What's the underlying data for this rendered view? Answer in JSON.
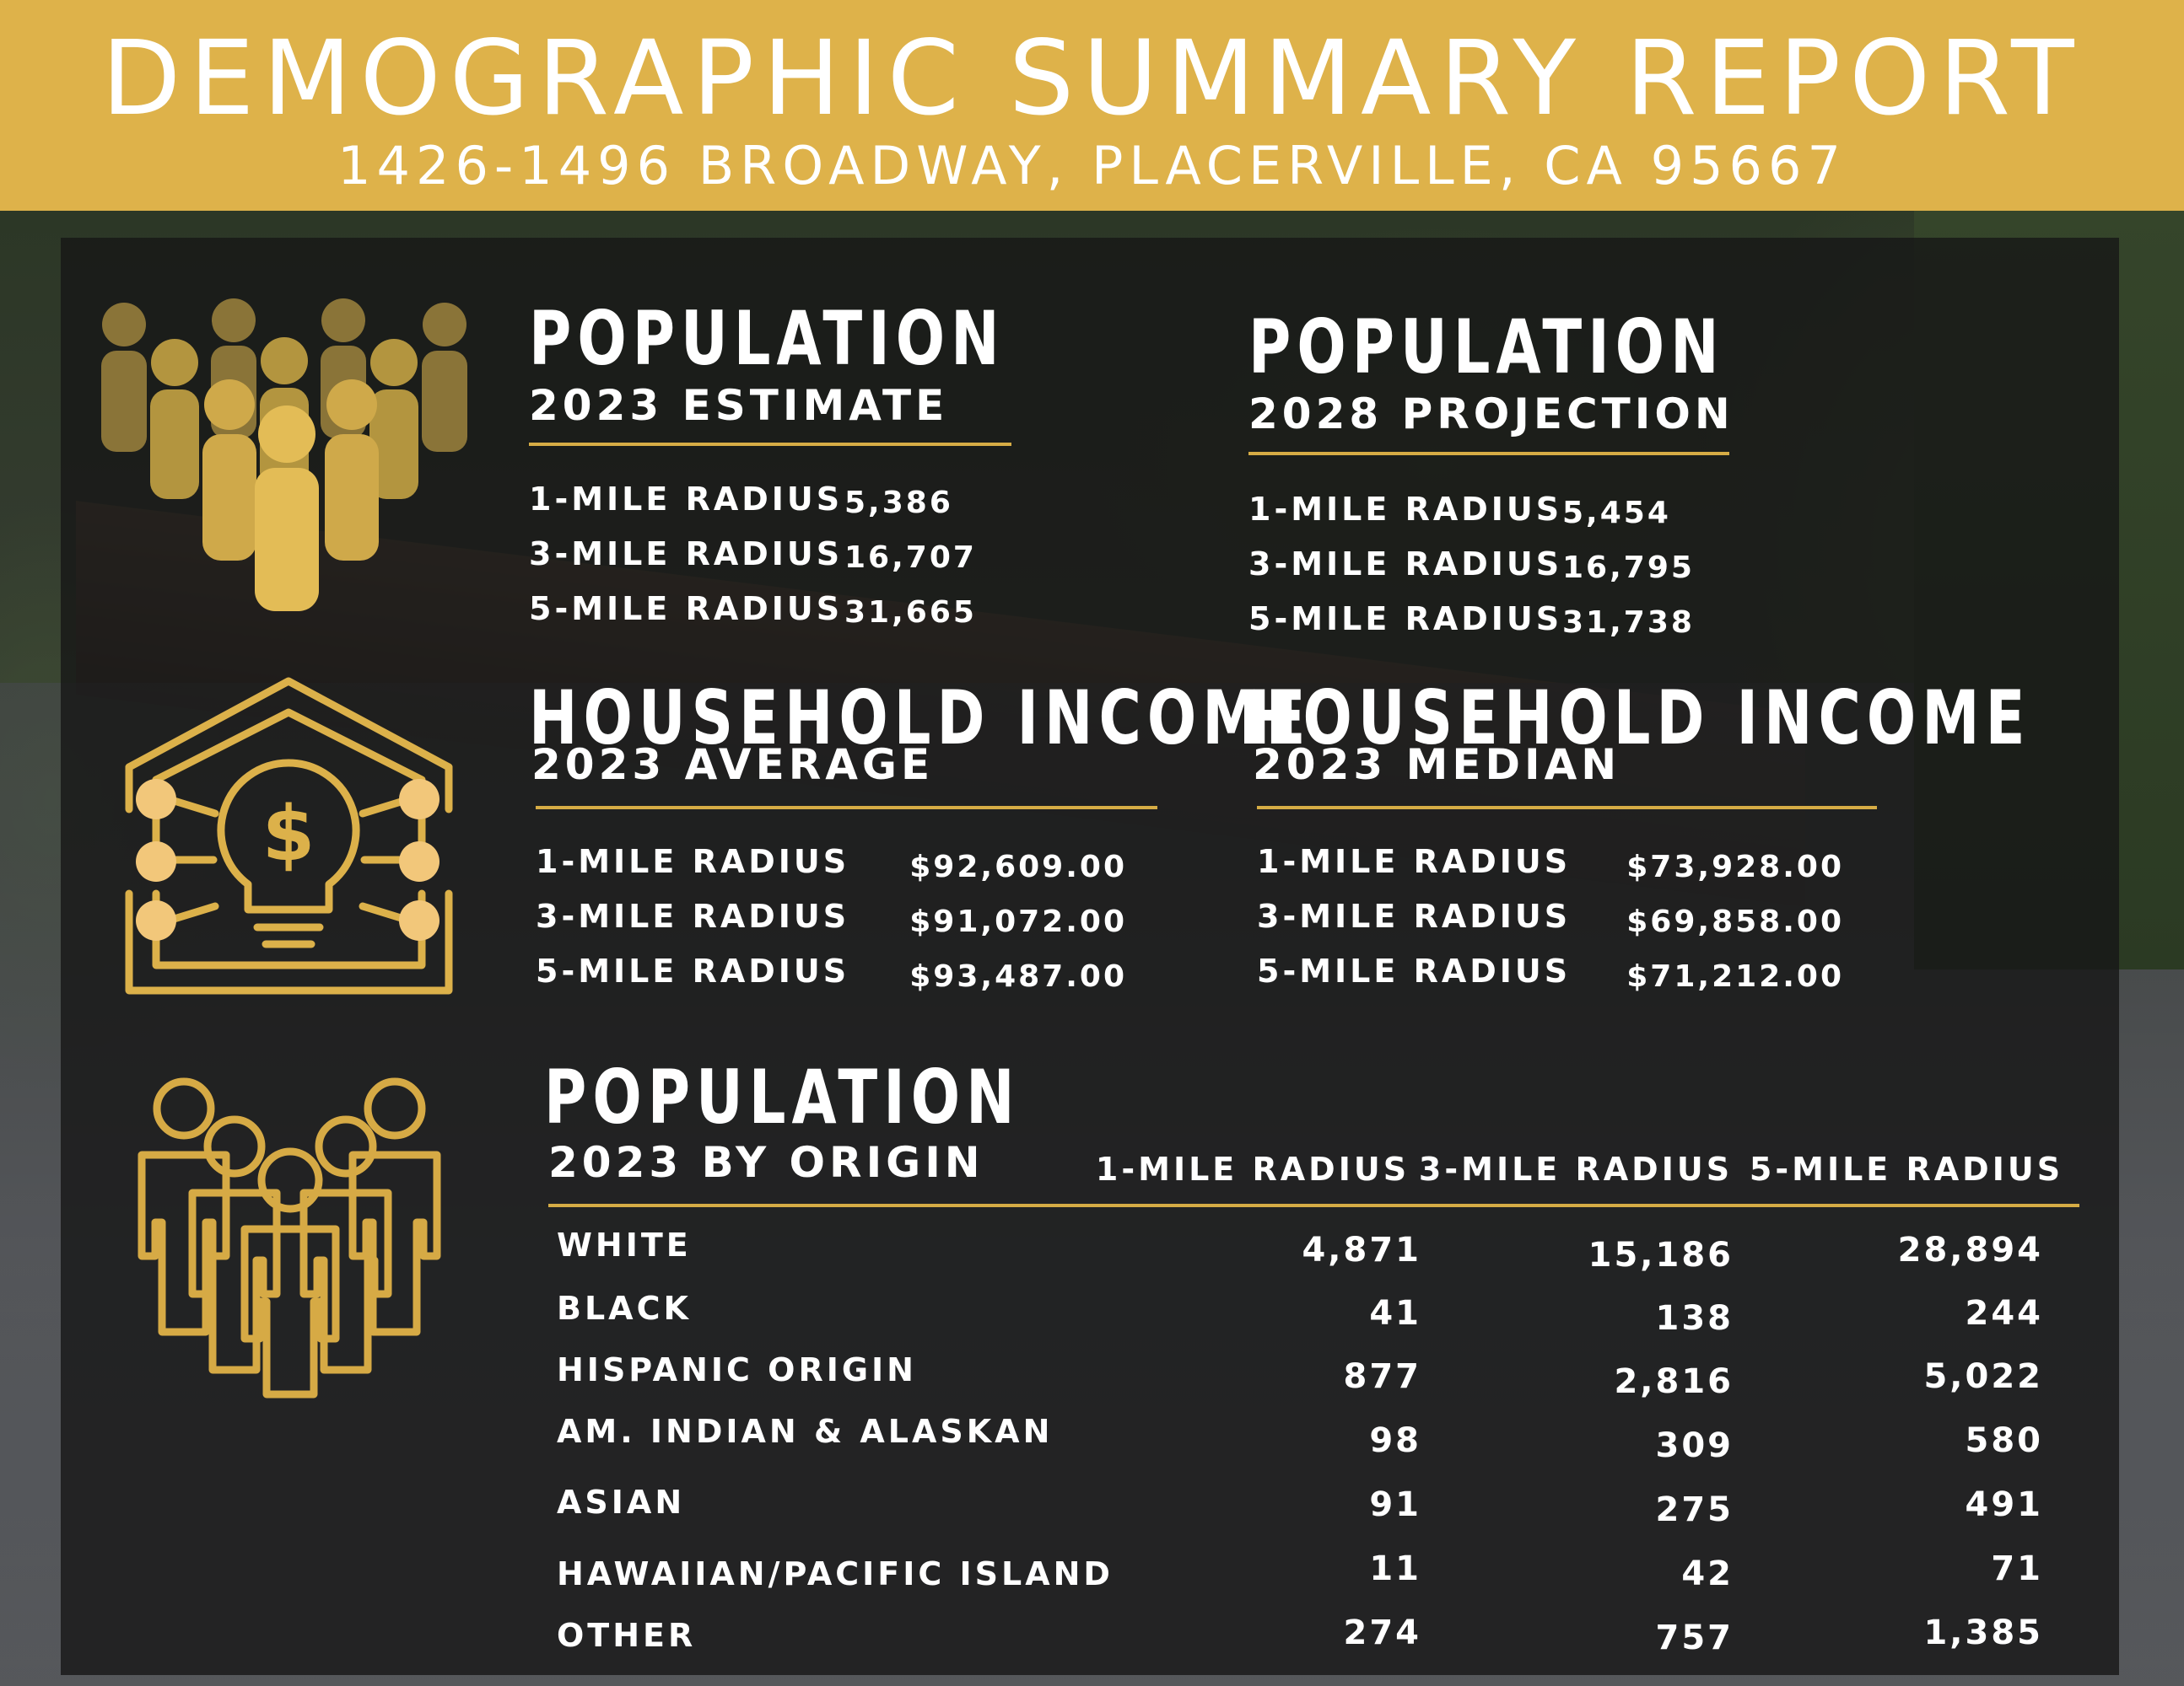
{
  "header": {
    "title": "DEMOGRAPHIC SUMMARY REPORT",
    "address": "1426-1496 BROADWAY, PLACERVILLE, CA 95667"
  },
  "colors": {
    "gold": "#deb24a",
    "rule_gold": "#d6ac45",
    "overlay": "#161616"
  },
  "icons": [
    "crowd-icon",
    "house-lightbulb-dollar-icon",
    "people-group-outline-icon"
  ],
  "population_2023": {
    "title": "POPULATION",
    "subtitle": "2023 ESTIMATE",
    "rows": [
      {
        "label": "1-MILE RADIUS",
        "value": "5,386"
      },
      {
        "label": "3-MILE RADIUS",
        "value": "16,707"
      },
      {
        "label": "5-MILE RADIUS",
        "value": "31,665"
      }
    ]
  },
  "population_2028": {
    "title": "POPULATION",
    "subtitle": "2028 PROJECTION",
    "rows": [
      {
        "label": "1-MILE RADIUS",
        "value": "5,454"
      },
      {
        "label": "3-MILE RADIUS",
        "value": "16,795"
      },
      {
        "label": "5-MILE RADIUS",
        "value": "31,738"
      }
    ]
  },
  "income_average": {
    "title": "HOUSEHOLD INCOME",
    "subtitle": "2023 AVERAGE",
    "rows": [
      {
        "label": "1-MILE RADIUS",
        "value": "$92,609.00"
      },
      {
        "label": "3-MILE RADIUS",
        "value": "$91,072.00"
      },
      {
        "label": "5-MILE RADIUS",
        "value": "$93,487.00"
      }
    ]
  },
  "income_median": {
    "title": "HOUSEHOLD INCOME",
    "subtitle": "2023 MEDIAN",
    "rows": [
      {
        "label": "1-MILE RADIUS",
        "value": "$73,928.00"
      },
      {
        "label": "3-MILE RADIUS",
        "value": "$69,858.00"
      },
      {
        "label": "5-MILE RADIUS",
        "value": "$71,212.00"
      }
    ]
  },
  "origin": {
    "title": "POPULATION",
    "subtitle": "2023 BY ORIGIN",
    "columns": [
      "1-MILE RADIUS",
      "3-MILE RADIUS",
      "5-MILE RADIUS"
    ],
    "rows": [
      {
        "label": "WHITE",
        "values": [
          "4,871",
          "15,186",
          "28,894"
        ]
      },
      {
        "label": "BLACK",
        "values": [
          "41",
          "138",
          "244"
        ]
      },
      {
        "label": "HISPANIC ORIGIN",
        "values": [
          "877",
          "2,816",
          "5,022"
        ]
      },
      {
        "label": "AM. INDIAN & ALASKAN",
        "values": [
          "98",
          "309",
          "580"
        ]
      },
      {
        "label": "ASIAN",
        "values": [
          "91",
          "275",
          "491"
        ]
      },
      {
        "label": "HAWAIIAN/PACIFIC ISLAND",
        "values": [
          "11",
          "42",
          "71"
        ]
      },
      {
        "label": "OTHER",
        "values": [
          "274",
          "757",
          "1,385"
        ]
      }
    ]
  }
}
